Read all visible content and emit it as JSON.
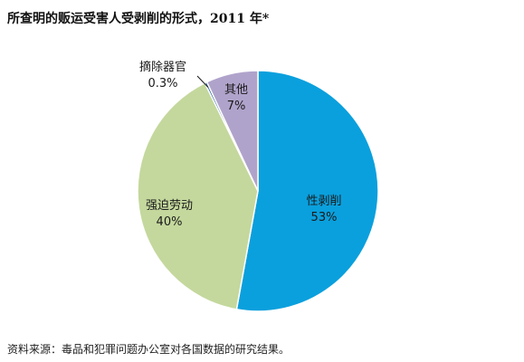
{
  "chart_data": {
    "type": "pie",
    "title": "所查明的贩运受害人受剥削的形式，2011 年*",
    "slices": [
      {
        "label": "性剥削",
        "value": 53,
        "value_label": "53%",
        "color": "#0aa0dd"
      },
      {
        "label": "强迫劳动",
        "value": 40,
        "value_label": "40%",
        "color": "#c4d89d"
      },
      {
        "label": "摘除器官",
        "value": 0.3,
        "value_label": "0.3%",
        "color": "#1f5aa0"
      },
      {
        "label": "其他",
        "value": 7,
        "value_label": "7%",
        "color": "#b0a3cb"
      }
    ],
    "start": "12 o'clock",
    "direction": "clockwise",
    "legend": "none"
  },
  "footer": {
    "source": "资料来源：毒品和犯罪问题办公室对各国数据的研究结果。"
  }
}
